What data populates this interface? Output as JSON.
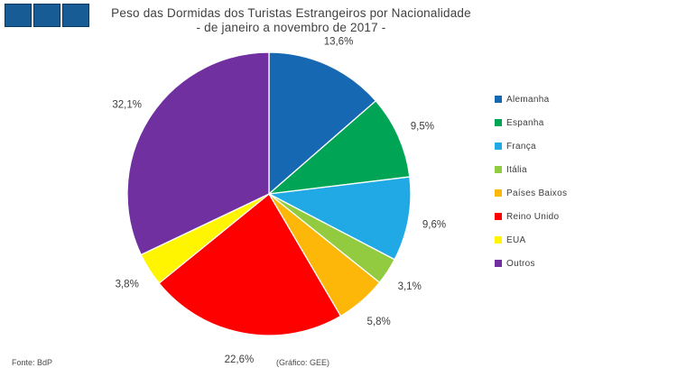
{
  "header": {
    "title_line1": "Peso das Dormidas dos Turistas Estrangeiros por Nacionalidade",
    "title_line2": "- de janeiro a novembro  de 2017 -",
    "logo_fill": "#175c94",
    "logo_border": "#0a375f"
  },
  "footer": {
    "source": "Fonte: BdP",
    "credit": "(Gráfico:  GEE)"
  },
  "chart_data": {
    "type": "pie",
    "title": "Peso das Dormidas dos Turistas Estrangeiros por Nacionalidade - de janeiro a novembro de 2017 -",
    "categories": [
      "Alemanha",
      "Espanha",
      "França",
      "Itália",
      "Países Baixos",
      "Reino Unido",
      "EUA",
      "Outros"
    ],
    "values": [
      13.6,
      9.5,
      9.6,
      3.1,
      5.8,
      22.6,
      3.8,
      32.1
    ],
    "labels": [
      "13,6%",
      "9,5%",
      "9,6%",
      "3,1%",
      "5,8%",
      "22,6%",
      "3,8%",
      "32,1%"
    ],
    "colors": [
      "#1668b3",
      "#00a455",
      "#20a9e4",
      "#92cb40",
      "#fdb709",
      "#fe0000",
      "#fff500",
      "#7030a0"
    ],
    "slugs": [
      "alemanha",
      "espanha",
      "franca",
      "italia",
      "paises-baixos",
      "reino-unido",
      "eua",
      "outros"
    ],
    "start_angle_deg": 0,
    "direction": "clockwise",
    "legend_position": "right",
    "data_labels": "outside-percent"
  }
}
